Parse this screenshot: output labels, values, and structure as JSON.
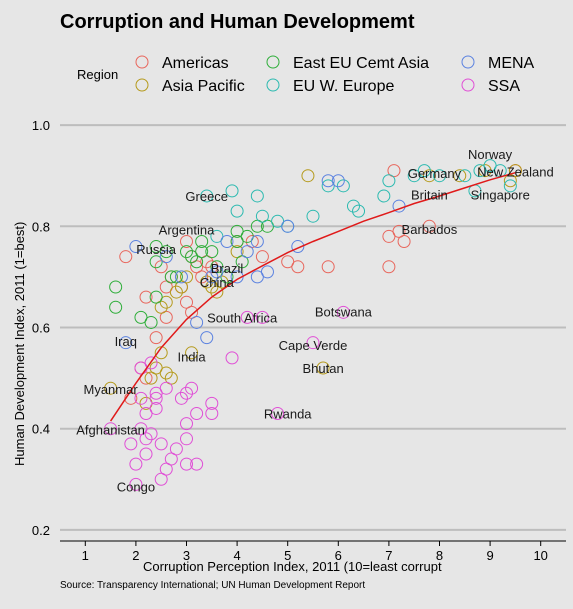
{
  "chart_data": {
    "type": "scatter",
    "title": "Corruption and Human Developmemt",
    "xlabel": "Corruption Perception Index, 2011 (10=least corrupt",
    "ylabel": "Human Development Index, 2011 (1=best)",
    "source": "Source: Transparency International; UN Human Development Report",
    "xlim": [
      0.5,
      10.5
    ],
    "ylim": [
      0.18,
      1.02
    ],
    "xticks": [
      1,
      2,
      3,
      4,
      5,
      6,
      7,
      8,
      9,
      10
    ],
    "xtick_labels": [
      "1",
      "2",
      "3",
      "4",
      "5",
      "6",
      "7",
      "8",
      "9",
      "10"
    ],
    "yticks": [
      0.2,
      0.4,
      0.6,
      0.8,
      1.0
    ],
    "ytick_labels": [
      "0.2",
      "0.4",
      "0.6",
      "0.8",
      "1.0"
    ],
    "grid": "horizontal",
    "legend_position": "top",
    "legend_title": "Region",
    "series": [
      {
        "name": "Americas",
        "color": "#e8665c",
        "points": [
          [
            1.8,
            0.74
          ],
          [
            2.2,
            0.66
          ],
          [
            2.5,
            0.72
          ],
          [
            2.7,
            0.7
          ],
          [
            2.9,
            0.68
          ],
          [
            3.0,
            0.77
          ],
          [
            3.1,
            0.63
          ],
          [
            3.2,
            0.72
          ],
          [
            3.3,
            0.7
          ],
          [
            3.4,
            0.73
          ],
          [
            3.5,
            0.72
          ],
          [
            3.0,
            0.65
          ],
          [
            2.6,
            0.62
          ],
          [
            2.4,
            0.58
          ],
          [
            2.1,
            0.52
          ],
          [
            1.9,
            0.46
          ],
          [
            2.2,
            0.5
          ],
          [
            2.6,
            0.68
          ],
          [
            3.1,
            0.74
          ],
          [
            4.0,
            0.77
          ],
          [
            4.3,
            0.77
          ],
          [
            4.5,
            0.74
          ],
          [
            5.0,
            0.73
          ],
          [
            5.2,
            0.72
          ],
          [
            5.8,
            0.72
          ],
          [
            7.0,
            0.72
          ],
          [
            7.0,
            0.78
          ],
          [
            7.2,
            0.79
          ],
          [
            7.3,
            0.77
          ],
          [
            7.8,
            0.8
          ],
          [
            7.1,
            0.91
          ],
          [
            9.5,
            0.91
          ]
        ]
      },
      {
        "name": "Asia Pacific",
        "color": "#b59a1c",
        "points": [
          [
            1.5,
            0.48
          ],
          [
            2.2,
            0.45
          ],
          [
            2.3,
            0.5
          ],
          [
            2.4,
            0.52
          ],
          [
            2.5,
            0.55
          ],
          [
            2.6,
            0.51
          ],
          [
            2.7,
            0.5
          ],
          [
            2.5,
            0.64
          ],
          [
            2.6,
            0.65
          ],
          [
            2.8,
            0.67
          ],
          [
            2.9,
            0.68
          ],
          [
            3.0,
            0.7
          ],
          [
            3.1,
            0.55
          ],
          [
            3.4,
            0.69
          ],
          [
            3.5,
            0.68
          ],
          [
            3.6,
            0.67
          ],
          [
            3.7,
            0.69
          ],
          [
            4.0,
            0.75
          ],
          [
            5.4,
            0.9
          ],
          [
            5.7,
            0.52
          ],
          [
            7.8,
            0.9
          ],
          [
            8.4,
            0.9
          ],
          [
            8.9,
            0.91
          ],
          [
            9.5,
            0.91
          ],
          [
            9.4,
            0.89
          ]
        ]
      },
      {
        "name": "East EU Cemt Asia",
        "color": "#2fae3a",
        "points": [
          [
            1.6,
            0.68
          ],
          [
            1.6,
            0.64
          ],
          [
            2.1,
            0.62
          ],
          [
            2.3,
            0.61
          ],
          [
            2.4,
            0.66
          ],
          [
            2.4,
            0.73
          ],
          [
            2.4,
            0.76
          ],
          [
            2.6,
            0.75
          ],
          [
            2.7,
            0.7
          ],
          [
            2.8,
            0.7
          ],
          [
            3.0,
            0.75
          ],
          [
            3.1,
            0.74
          ],
          [
            3.2,
            0.73
          ],
          [
            3.3,
            0.77
          ],
          [
            3.3,
            0.75
          ],
          [
            3.5,
            0.75
          ],
          [
            3.6,
            0.72
          ],
          [
            3.8,
            0.7
          ],
          [
            4.0,
            0.77
          ],
          [
            4.0,
            0.79
          ],
          [
            4.1,
            0.73
          ],
          [
            4.2,
            0.78
          ],
          [
            4.4,
            0.8
          ],
          [
            4.6,
            0.8
          ]
        ]
      },
      {
        "name": "EU W. Europe",
        "color": "#2cbab0",
        "points": [
          [
            3.4,
            0.86
          ],
          [
            3.6,
            0.78
          ],
          [
            3.9,
            0.87
          ],
          [
            4.0,
            0.83
          ],
          [
            4.4,
            0.86
          ],
          [
            4.5,
            0.82
          ],
          [
            4.8,
            0.81
          ],
          [
            5.0,
            0.8
          ],
          [
            5.5,
            0.82
          ],
          [
            5.8,
            0.88
          ],
          [
            6.1,
            0.88
          ],
          [
            6.3,
            0.84
          ],
          [
            6.4,
            0.83
          ],
          [
            6.9,
            0.86
          ],
          [
            7.0,
            0.89
          ],
          [
            7.5,
            0.9
          ],
          [
            7.7,
            0.91
          ],
          [
            8.0,
            0.9
          ],
          [
            8.5,
            0.9
          ],
          [
            8.8,
            0.91
          ],
          [
            9.0,
            0.92
          ],
          [
            9.2,
            0.91
          ],
          [
            9.4,
            0.88
          ],
          [
            8.7,
            0.87
          ]
        ]
      },
      {
        "name": "MENA",
        "color": "#5b82e0",
        "points": [
          [
            1.8,
            0.57
          ],
          [
            2.0,
            0.76
          ],
          [
            2.6,
            0.74
          ],
          [
            2.9,
            0.7
          ],
          [
            3.2,
            0.61
          ],
          [
            3.4,
            0.58
          ],
          [
            3.5,
            0.7
          ],
          [
            3.6,
            0.71
          ],
          [
            3.8,
            0.77
          ],
          [
            4.0,
            0.7
          ],
          [
            4.2,
            0.75
          ],
          [
            4.4,
            0.7
          ],
          [
            4.4,
            0.77
          ],
          [
            4.6,
            0.71
          ],
          [
            5.0,
            0.8
          ],
          [
            5.2,
            0.76
          ],
          [
            5.8,
            0.89
          ],
          [
            6.0,
            0.89
          ],
          [
            7.2,
            0.84
          ]
        ]
      },
      {
        "name": "SSA",
        "color": "#e04fd6",
        "points": [
          [
            1.5,
            0.4
          ],
          [
            1.9,
            0.37
          ],
          [
            2.0,
            0.33
          ],
          [
            2.1,
            0.4
          ],
          [
            2.1,
            0.46
          ],
          [
            2.2,
            0.35
          ],
          [
            2.2,
            0.38
          ],
          [
            2.2,
            0.43
          ],
          [
            2.3,
            0.39
          ],
          [
            2.4,
            0.44
          ],
          [
            2.4,
            0.46
          ],
          [
            2.4,
            0.47
          ],
          [
            2.5,
            0.37
          ],
          [
            2.5,
            0.3
          ],
          [
            2.6,
            0.32
          ],
          [
            2.6,
            0.48
          ],
          [
            2.7,
            0.34
          ],
          [
            2.8,
            0.36
          ],
          [
            2.9,
            0.46
          ],
          [
            3.0,
            0.41
          ],
          [
            3.0,
            0.47
          ],
          [
            3.0,
            0.38
          ],
          [
            3.0,
            0.33
          ],
          [
            3.1,
            0.48
          ],
          [
            3.2,
            0.43
          ],
          [
            3.2,
            0.33
          ],
          [
            3.5,
            0.43
          ],
          [
            3.5,
            0.45
          ],
          [
            3.9,
            0.54
          ],
          [
            4.2,
            0.62
          ],
          [
            4.5,
            0.62
          ],
          [
            4.8,
            0.43
          ],
          [
            5.5,
            0.57
          ],
          [
            6.1,
            0.63
          ],
          [
            2.1,
            0.52
          ],
          [
            2.3,
            0.53
          ],
          [
            2.0,
            0.29
          ]
        ]
      }
    ],
    "trendline": {
      "color": "#e01a1a",
      "x": [
        1.5,
        2,
        2.5,
        3,
        3.5,
        4,
        4.5,
        5,
        5.5,
        6,
        6.5,
        7,
        7.5,
        8,
        8.5,
        9,
        9.5
      ],
      "y": [
        0.415,
        0.49,
        0.56,
        0.616,
        0.66,
        0.695,
        0.722,
        0.748,
        0.77,
        0.79,
        0.81,
        0.827,
        0.845,
        0.86,
        0.876,
        0.892,
        0.906
      ]
    },
    "annotations": [
      {
        "text": "Norway",
        "x": 9.0,
        "y": 0.943
      },
      {
        "text": "New Zealand",
        "x": 9.5,
        "y": 0.908
      },
      {
        "text": "Germany",
        "x": 7.9,
        "y": 0.905
      },
      {
        "text": "Britain",
        "x": 7.8,
        "y": 0.863
      },
      {
        "text": "Singapore",
        "x": 9.2,
        "y": 0.863
      },
      {
        "text": "Greece",
        "x": 3.4,
        "y": 0.86
      },
      {
        "text": "Barbados",
        "x": 7.8,
        "y": 0.795
      },
      {
        "text": "Argentina",
        "x": 3.0,
        "y": 0.794
      },
      {
        "text": "Russia",
        "x": 2.4,
        "y": 0.755
      },
      {
        "text": "Brazil",
        "x": 3.8,
        "y": 0.718
      },
      {
        "text": "China",
        "x": 3.6,
        "y": 0.69
      },
      {
        "text": "Botswana",
        "x": 6.1,
        "y": 0.632
      },
      {
        "text": "South Africa",
        "x": 4.1,
        "y": 0.62
      },
      {
        "text": "Iraq",
        "x": 1.8,
        "y": 0.573
      },
      {
        "text": "Cape Verde",
        "x": 5.5,
        "y": 0.565
      },
      {
        "text": "India",
        "x": 3.1,
        "y": 0.543
      },
      {
        "text": "Bhutan",
        "x": 5.7,
        "y": 0.52
      },
      {
        "text": "Myanmar",
        "x": 1.5,
        "y": 0.478
      },
      {
        "text": "Rwanda",
        "x": 5.0,
        "y": 0.43
      },
      {
        "text": "Afghanistan",
        "x": 1.5,
        "y": 0.398
      },
      {
        "text": "Congo",
        "x": 2.0,
        "y": 0.286
      }
    ]
  }
}
